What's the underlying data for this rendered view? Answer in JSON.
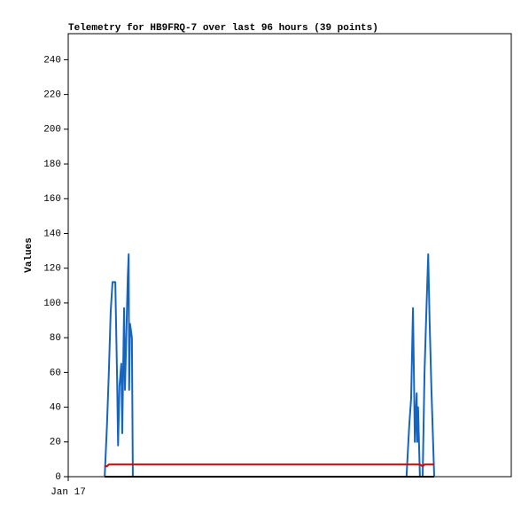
{
  "chart_data": {
    "type": "line",
    "title": "Telemetry for HB9FRQ-7 over last 96 hours (39 points)",
    "ylabel": "Values",
    "x": [
      7.9,
      8.4,
      8.8,
      9.2,
      9.6,
      10.2,
      10.6,
      10.8,
      11.1,
      11.5,
      11.7,
      12.1,
      12.3,
      12.5,
      12.9,
      13.1,
      13.2,
      13.4,
      13.8,
      14.0,
      73.3,
      73.9,
      74.3,
      74.7,
      74.9,
      75.1,
      75.3,
      75.5,
      75.6,
      75.8,
      76.2,
      76.8,
      77.2,
      77.6,
      78.0,
      78.1,
      78.3,
      78.7,
      79.3
    ],
    "series": [
      {
        "color": "#1565c0",
        "values": [
          0,
          30,
          60,
          95,
          112,
          112,
          55,
          18,
          52,
          65,
          25,
          97,
          50,
          72,
          115,
          128,
          50,
          88,
          80,
          0,
          0,
          30,
          45,
          97,
          60,
          20,
          35,
          48,
          20,
          40,
          0,
          0,
          60,
          95,
          128,
          115,
          90,
          50,
          0
        ]
      },
      {
        "color": "#e00000",
        "values": [
          6,
          6,
          7,
          7,
          7,
          7,
          7,
          7,
          7,
          7,
          7,
          7,
          7,
          7,
          7,
          7,
          7,
          7,
          7,
          7,
          7,
          7,
          7,
          7,
          7,
          7,
          7,
          7,
          7,
          7,
          7,
          6,
          7,
          7,
          7,
          7,
          7,
          7,
          7
        ]
      },
      {
        "color": "#000000",
        "values": [
          0,
          0,
          0,
          0,
          0,
          0,
          0,
          0,
          0,
          0,
          0,
          0,
          0,
          0,
          0,
          0,
          0,
          0,
          0,
          0,
          0,
          0,
          0,
          0,
          0,
          0,
          0,
          0,
          0,
          0,
          0,
          0,
          0,
          0,
          0,
          0,
          0,
          0,
          0
        ]
      }
    ],
    "xlim": [
      0,
      96
    ],
    "xticks": [
      {
        "value": 0,
        "label": "Jan 17"
      }
    ],
    "ylim": [
      0,
      255
    ],
    "yticks": [
      0,
      20,
      40,
      60,
      80,
      100,
      120,
      140,
      160,
      180,
      200,
      220,
      240
    ]
  }
}
